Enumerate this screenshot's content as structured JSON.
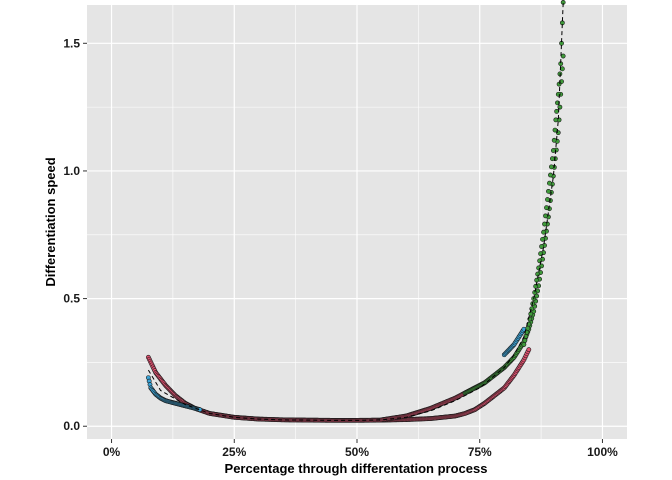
{
  "chart_data": {
    "type": "scatter",
    "title": "",
    "xlabel": "Percentage through differentation process",
    "ylabel": "Differentiation speed",
    "xlim": [
      -0.05,
      1.05
    ],
    "ylim": [
      -0.05,
      1.65
    ],
    "x_ticks": [
      0,
      0.25,
      0.5,
      0.75,
      1.0
    ],
    "x_tick_labels": [
      "0%",
      "25%",
      "50%",
      "75%",
      "100%"
    ],
    "y_ticks": [
      0.0,
      0.5,
      1.0,
      1.5
    ],
    "y_tick_labels": [
      "0.0",
      "0.5",
      "1.0",
      "1.5"
    ],
    "grid": true,
    "legend": "none",
    "colors": {
      "panel": "#e5e5e5",
      "grid": "#ffffff",
      "red_series": "#e0506f",
      "blue_series": "#3aa3d6",
      "green_series": "#3f9a3a",
      "point_outline": "#1a1a1a",
      "trend_line": "#000000"
    },
    "series": [
      {
        "color": "red_series",
        "x": [
          0.075,
          0.09,
          0.11,
          0.13,
          0.15,
          0.17,
          0.2,
          0.25,
          0.3,
          0.35,
          0.4,
          0.45,
          0.5,
          0.55,
          0.6,
          0.65,
          0.7,
          0.72,
          0.74,
          0.76,
          0.78,
          0.8,
          0.82,
          0.84,
          0.85
        ],
        "y": [
          0.27,
          0.21,
          0.16,
          0.12,
          0.09,
          0.07,
          0.05,
          0.035,
          0.028,
          0.025,
          0.024,
          0.023,
          0.023,
          0.024,
          0.026,
          0.03,
          0.04,
          0.05,
          0.065,
          0.09,
          0.12,
          0.15,
          0.2,
          0.26,
          0.3
        ]
      },
      {
        "color": "red_series",
        "x": [
          0.55,
          0.6,
          0.65,
          0.7,
          0.72,
          0.74,
          0.76
        ],
        "y": [
          0.025,
          0.04,
          0.07,
          0.11,
          0.13,
          0.15,
          0.17
        ]
      },
      {
        "color": "blue_series",
        "x": [
          0.075,
          0.08,
          0.09,
          0.1,
          0.11,
          0.12,
          0.13,
          0.14,
          0.15,
          0.16,
          0.18
        ],
        "y": [
          0.19,
          0.15,
          0.125,
          0.11,
          0.1,
          0.095,
          0.09,
          0.085,
          0.08,
          0.075,
          0.065
        ]
      },
      {
        "color": "blue_series",
        "x": [
          0.8,
          0.81,
          0.82,
          0.83,
          0.84
        ],
        "y": [
          0.28,
          0.3,
          0.32,
          0.35,
          0.38
        ]
      },
      {
        "color": "green_series",
        "x": [
          0.72,
          0.74,
          0.76,
          0.78,
          0.8,
          0.82,
          0.84,
          0.85,
          0.86,
          0.87,
          0.88,
          0.89,
          0.9,
          0.91,
          0.915,
          0.92
        ],
        "y": [
          0.13,
          0.15,
          0.17,
          0.2,
          0.23,
          0.27,
          0.33,
          0.38,
          0.45,
          0.55,
          0.68,
          0.82,
          0.98,
          1.15,
          1.3,
          1.45
        ]
      },
      {
        "color": "green_series",
        "x": [
          0.84,
          0.85,
          0.86,
          0.87,
          0.88,
          0.89,
          0.9,
          0.905,
          0.91,
          0.915,
          0.92
        ],
        "y": [
          0.32,
          0.4,
          0.5,
          0.62,
          0.76,
          0.92,
          1.08,
          1.2,
          1.3,
          1.42,
          1.66
        ]
      }
    ],
    "trend_line": {
      "x": [
        0.075,
        0.1,
        0.15,
        0.2,
        0.25,
        0.3,
        0.35,
        0.4,
        0.45,
        0.5,
        0.55,
        0.6,
        0.65,
        0.7,
        0.75,
        0.8,
        0.82,
        0.84,
        0.86,
        0.88,
        0.9,
        0.91,
        0.92
      ],
      "y": [
        0.22,
        0.14,
        0.085,
        0.05,
        0.035,
        0.028,
        0.025,
        0.024,
        0.023,
        0.023,
        0.025,
        0.035,
        0.06,
        0.1,
        0.15,
        0.23,
        0.28,
        0.35,
        0.5,
        0.7,
        0.98,
        1.2,
        1.66
      ]
    }
  }
}
